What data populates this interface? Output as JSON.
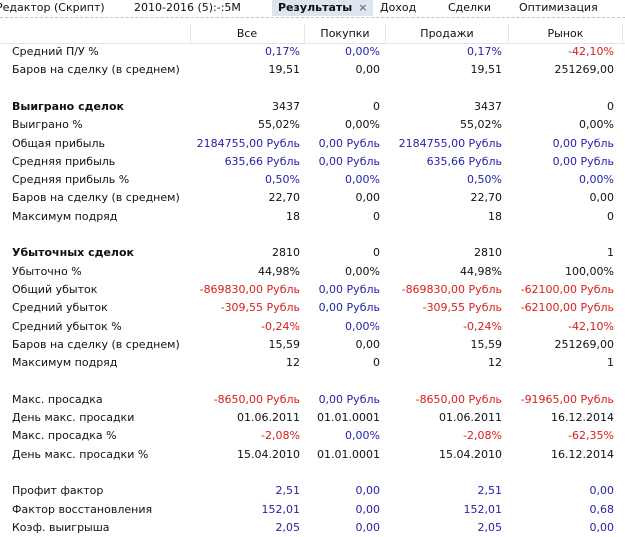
{
  "tabs": [
    {
      "label": "Редактор (Скрипт)"
    },
    {
      "label": "2010-2016 (5):-:5M"
    },
    {
      "label": "Результаты",
      "active": true,
      "close": "×"
    },
    {
      "label": "Доход"
    },
    {
      "label": "Сделки"
    },
    {
      "label": "Оптимизация"
    }
  ],
  "columns": [
    "",
    "Все",
    "Покупки",
    "Продажи",
    "Рынок"
  ],
  "colors": {
    "blue": "#2424a8",
    "red": "#d42020"
  },
  "rows": [
    {
      "label": "Средний П/У %",
      "v": [
        "0,17%",
        "0,00%",
        "0,17%",
        "-42,10%"
      ],
      "c": [
        "blue",
        "blue",
        "blue",
        "red"
      ]
    },
    {
      "label": "Баров на сделку (в среднем)",
      "v": [
        "19,51",
        "0,00",
        "19,51",
        "251269,00"
      ]
    },
    null,
    {
      "label": "Выиграно сделок",
      "bold": true,
      "v": [
        "3437",
        "0",
        "3437",
        "0"
      ]
    },
    {
      "label": "Выиграно %",
      "v": [
        "55,02%",
        "0,00%",
        "55,02%",
        "0,00%"
      ]
    },
    {
      "label": "Общая прибыль",
      "v": [
        "2184755,00 Рубль",
        "0,00 Рубль",
        "2184755,00 Рубль",
        "0,00 Рубль"
      ],
      "c": [
        "blue",
        "blue",
        "blue",
        "blue"
      ]
    },
    {
      "label": "Средняя прибыль",
      "v": [
        "635,66 Рубль",
        "0,00 Рубль",
        "635,66 Рубль",
        "0,00 Рубль"
      ],
      "c": [
        "blue",
        "blue",
        "blue",
        "blue"
      ]
    },
    {
      "label": "Средняя прибыль %",
      "v": [
        "0,50%",
        "0,00%",
        "0,50%",
        "0,00%"
      ],
      "c": [
        "blue",
        "blue",
        "blue",
        "blue"
      ]
    },
    {
      "label": "Баров на сделку (в среднем)",
      "v": [
        "22,70",
        "0,00",
        "22,70",
        "0,00"
      ]
    },
    {
      "label": "Максимум подряд",
      "v": [
        "18",
        "0",
        "18",
        "0"
      ]
    },
    null,
    {
      "label": "Убыточных сделок",
      "bold": true,
      "v": [
        "2810",
        "0",
        "2810",
        "1"
      ]
    },
    {
      "label": "Убыточно %",
      "v": [
        "44,98%",
        "0,00%",
        "44,98%",
        "100,00%"
      ]
    },
    {
      "label": "Общий убыток",
      "v": [
        "-869830,00 Рубль",
        "0,00 Рубль",
        "-869830,00 Рубль",
        "-62100,00 Рубль"
      ],
      "c": [
        "red",
        "blue",
        "red",
        "red"
      ]
    },
    {
      "label": "Средний убыток",
      "v": [
        "-309,55 Рубль",
        "0,00 Рубль",
        "-309,55 Рубль",
        "-62100,00 Рубль"
      ],
      "c": [
        "red",
        "blue",
        "red",
        "red"
      ]
    },
    {
      "label": "Средний убыток %",
      "v": [
        "-0,24%",
        "0,00%",
        "-0,24%",
        "-42,10%"
      ],
      "c": [
        "red",
        "blue",
        "red",
        "red"
      ]
    },
    {
      "label": "Баров на сделку (в среднем)",
      "v": [
        "15,59",
        "0,00",
        "15,59",
        "251269,00"
      ]
    },
    {
      "label": "Максимум подряд",
      "v": [
        "12",
        "0",
        "12",
        "1"
      ]
    },
    null,
    {
      "label": "Макс. просадка",
      "v": [
        "-8650,00 Рубль",
        "0,00 Рубль",
        "-8650,00 Рубль",
        "-91965,00 Рубль"
      ],
      "c": [
        "red",
        "blue",
        "red",
        "red"
      ]
    },
    {
      "label": "День макс. просадки",
      "v": [
        "01.06.2011",
        "01.01.0001",
        "01.06.2011",
        "16.12.2014"
      ]
    },
    {
      "label": "Макс. просадка %",
      "v": [
        "-2,08%",
        "0,00%",
        "-2,08%",
        "-62,35%"
      ],
      "c": [
        "red",
        "blue",
        "red",
        "red"
      ]
    },
    {
      "label": "День макс. просадки %",
      "v": [
        "15.04.2010",
        "01.01.0001",
        "15.04.2010",
        "16.12.2014"
      ]
    },
    null,
    {
      "label": "Профит фактор",
      "v": [
        "2,51",
        "0,00",
        "2,51",
        "0,00"
      ],
      "c": [
        "blue",
        "blue",
        "blue",
        "blue"
      ]
    },
    {
      "label": "Фактор восстановления",
      "v": [
        "152,01",
        "0,00",
        "152,01",
        "0,68"
      ],
      "c": [
        "blue",
        "blue",
        "blue",
        "blue"
      ]
    },
    {
      "label": "Коэф. выигрыша",
      "v": [
        "2,05",
        "0,00",
        "2,05",
        "0,00"
      ],
      "c": [
        "blue",
        "blue",
        "blue",
        "blue"
      ]
    }
  ]
}
